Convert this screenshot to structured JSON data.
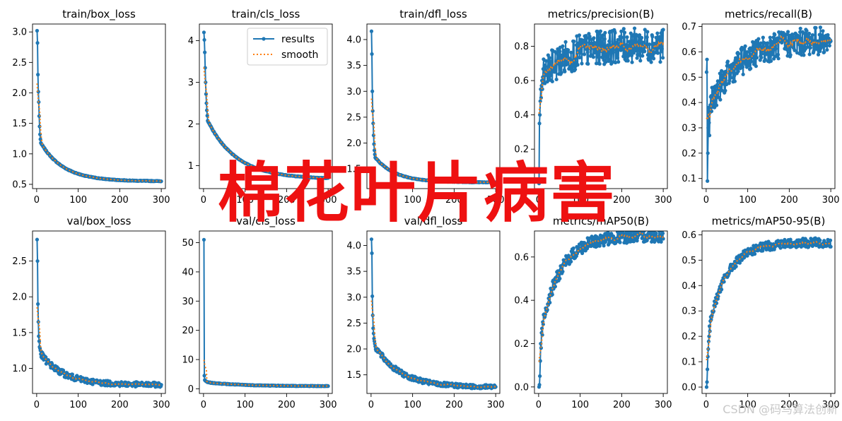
{
  "overlay_title": "棉花叶片病害",
  "watermark": "CSDN @码马算法创新",
  "colors": {
    "results": "#1f77b4",
    "smooth": "#ff7f0e",
    "overlay": "#ee1111"
  },
  "legend": {
    "labels": [
      "results",
      "smooth"
    ],
    "location": "upper right",
    "panel": 1
  },
  "chart_data": [
    {
      "type": "line",
      "title": "train/box_loss",
      "xlim": [
        -10,
        310
      ],
      "ylim": [
        0.43,
        3.13
      ],
      "xticks": [
        0,
        100,
        200,
        300
      ],
      "yticks": [
        0.5,
        1.0,
        1.5,
        2.0,
        2.5,
        3.0
      ],
      "xtick_labels": [
        "0",
        "100",
        "200",
        "300"
      ],
      "ytick_labels": [
        "0.5",
        "1.0",
        "1.5",
        "2.0",
        "2.5",
        "3.0"
      ],
      "shape": {
        "kind": "decay",
        "start": [
          3.02,
          2.82,
          2.3,
          2.02,
          1.85,
          1.62,
          1.45,
          1.32,
          1.24,
          1.18
        ],
        "tau": 55,
        "end": 0.55,
        "noise": 0.008
      },
      "series": [
        {
          "name": "results"
        },
        {
          "name": "smooth"
        }
      ]
    },
    {
      "type": "line",
      "title": "train/cls_loss",
      "xlim": [
        -10,
        310
      ],
      "ylim": [
        0.45,
        4.4
      ],
      "xticks": [
        0,
        100,
        200,
        300
      ],
      "yticks": [
        1,
        2,
        3,
        4
      ],
      "xtick_labels": [
        "0",
        "100",
        "200",
        "300"
      ],
      "ytick_labels": [
        "1",
        "2",
        "3",
        "4"
      ],
      "shape": {
        "kind": "decay",
        "start": [
          4.2,
          4.02,
          3.72,
          3.35,
          3.0,
          2.72,
          2.5,
          2.33,
          2.2,
          2.08
        ],
        "tau": 70,
        "end": 0.68,
        "noise": 0.01
      },
      "series": [
        {
          "name": "results"
        },
        {
          "name": "smooth"
        }
      ]
    },
    {
      "type": "line",
      "title": "train/dfl_loss",
      "xlim": [
        -10,
        310
      ],
      "ylim": [
        1.12,
        4.3
      ],
      "xticks": [
        0,
        100,
        200,
        300
      ],
      "yticks": [
        1.5,
        2.0,
        2.5,
        3.0,
        3.5,
        4.0
      ],
      "xtick_labels": [
        "0",
        "100",
        "200",
        "300"
      ],
      "ytick_labels": [
        "1.5",
        "2.0",
        "2.5",
        "3.0",
        "3.5",
        "4.0"
      ],
      "shape": {
        "kind": "decay",
        "start": [
          4.16,
          3.72,
          3.0,
          2.62,
          2.38,
          2.15,
          1.98,
          1.86,
          1.78,
          1.72
        ],
        "tau": 50,
        "end": 1.24,
        "noise": 0.008
      },
      "series": [
        {
          "name": "results"
        },
        {
          "name": "smooth"
        }
      ]
    },
    {
      "type": "line",
      "title": "metrics/precision(B)",
      "xlim": [
        -10,
        310
      ],
      "ylim": [
        -0.03,
        0.93
      ],
      "xticks": [
        0,
        100,
        200,
        300
      ],
      "yticks": [
        0.2,
        0.4,
        0.6,
        0.8
      ],
      "xtick_labels": [
        "0",
        "100",
        "200",
        "300"
      ],
      "ytick_labels": [
        "0.2",
        "0.4",
        "0.6",
        "0.8"
      ],
      "shape": {
        "kind": "rise",
        "start": [
          0.0,
          0.35,
          0.4,
          0.48,
          0.55,
          0.5,
          0.57,
          0.6,
          0.55,
          0.62
        ],
        "tau": 60,
        "end": 0.81,
        "noise": 0.1
      },
      "series": [
        {
          "name": "results"
        },
        {
          "name": "smooth"
        }
      ]
    },
    {
      "type": "line",
      "title": "metrics/recall(B)",
      "xlim": [
        -10,
        310
      ],
      "ylim": [
        0.06,
        0.71
      ],
      "xticks": [
        0,
        100,
        200,
        300
      ],
      "yticks": [
        0.1,
        0.2,
        0.3,
        0.4,
        0.5,
        0.6,
        0.7
      ],
      "xtick_labels": [
        "0",
        "100",
        "200",
        "300"
      ],
      "ytick_labels": [
        "0.1",
        "0.2",
        "0.3",
        "0.4",
        "0.5",
        "0.6",
        "0.7"
      ],
      "shape": {
        "kind": "rise",
        "start": [
          0.52,
          0.57,
          0.09,
          0.2,
          0.3,
          0.38,
          0.32,
          0.27,
          0.36,
          0.39
        ],
        "tau": 70,
        "end": 0.65,
        "noise": 0.055
      },
      "series": [
        {
          "name": "results"
        },
        {
          "name": "smooth"
        }
      ]
    },
    {
      "type": "line",
      "title": "val/box_loss",
      "xlim": [
        -10,
        310
      ],
      "ylim": [
        0.65,
        2.92
      ],
      "xticks": [
        0,
        100,
        200,
        300
      ],
      "yticks": [
        1.0,
        1.5,
        2.0,
        2.5
      ],
      "xtick_labels": [
        "0",
        "100",
        "200",
        "300"
      ],
      "ytick_labels": [
        "1.0",
        "1.5",
        "2.0",
        "2.5"
      ],
      "shape": {
        "kind": "decay",
        "start": [
          2.8,
          2.5,
          1.9,
          1.65,
          1.45,
          1.38,
          1.3,
          1.28,
          1.25,
          1.2
        ],
        "tau": 55,
        "end": 0.77,
        "noise": 0.05
      },
      "series": [
        {
          "name": "results"
        },
        {
          "name": "smooth"
        }
      ]
    },
    {
      "type": "line",
      "title": "val/cls_loss",
      "xlim": [
        -10,
        310
      ],
      "ylim": [
        -1.6,
        54
      ],
      "xticks": [
        0,
        100,
        200,
        300
      ],
      "yticks": [
        0,
        10,
        20,
        30,
        40,
        50
      ],
      "xtick_labels": [
        "0",
        "100",
        "200",
        "300"
      ],
      "ytick_labels": [
        "0",
        "10",
        "20",
        "30",
        "40",
        "50"
      ],
      "shape": {
        "kind": "decay",
        "start": [
          51.0,
          4.5,
          3.0,
          2.8,
          2.7,
          2.6,
          2.5,
          2.4,
          2.3,
          2.2
        ],
        "tau": 80,
        "end": 0.9,
        "noise": 0.15
      },
      "series": [
        {
          "name": "results"
        },
        {
          "name": "smooth"
        }
      ]
    },
    {
      "type": "line",
      "title": "val/dfl_loss",
      "xlim": [
        -10,
        310
      ],
      "ylim": [
        1.14,
        4.28
      ],
      "xticks": [
        0,
        100,
        200,
        300
      ],
      "yticks": [
        1.5,
        2.0,
        2.5,
        3.0,
        3.5,
        4.0
      ],
      "xtick_labels": [
        "0",
        "100",
        "200",
        "300"
      ],
      "ytick_labels": [
        "1.5",
        "2.0",
        "2.5",
        "3.0",
        "3.5",
        "4.0"
      ],
      "shape": {
        "kind": "decay",
        "start": [
          4.12,
          3.85,
          3.02,
          2.65,
          2.4,
          2.3,
          2.2,
          2.15,
          2.1,
          2.05
        ],
        "tau": 60,
        "end": 1.26,
        "noise": 0.06
      },
      "series": [
        {
          "name": "results"
        },
        {
          "name": "smooth"
        }
      ]
    },
    {
      "type": "line",
      "title": "metrics/mAP50(B)",
      "xlim": [
        -10,
        310
      ],
      "ylim": [
        -0.03,
        0.72
      ],
      "xticks": [
        0,
        100,
        200,
        300
      ],
      "yticks": [
        0.0,
        0.2,
        0.4,
        0.6
      ],
      "xtick_labels": [
        "0",
        "100",
        "200",
        "300"
      ],
      "ytick_labels": [
        "0.0",
        "0.2",
        "0.4",
        "0.6"
      ],
      "shape": {
        "kind": "rise",
        "start": [
          0.0,
          0.01,
          0.05,
          0.12,
          0.2,
          0.18,
          0.25,
          0.27,
          0.24,
          0.3
        ],
        "tau": 48,
        "end": 0.7,
        "noise": 0.03
      },
      "series": [
        {
          "name": "results"
        },
        {
          "name": "smooth"
        }
      ]
    },
    {
      "type": "line",
      "title": "metrics/mAP50-95(B)",
      "xlim": [
        -10,
        310
      ],
      "ylim": [
        -0.025,
        0.615
      ],
      "xticks": [
        0,
        100,
        200,
        300
      ],
      "yticks": [
        0.0,
        0.1,
        0.2,
        0.3,
        0.4,
        0.5,
        0.6
      ],
      "xtick_labels": [
        "0",
        "100",
        "200",
        "300"
      ],
      "ytick_labels": [
        "0.0",
        "0.1",
        "0.2",
        "0.3",
        "0.4",
        "0.5",
        "0.6"
      ],
      "shape": {
        "kind": "rise",
        "start": [
          0.0,
          0.02,
          0.07,
          0.12,
          0.15,
          0.18,
          0.2,
          0.24,
          0.22,
          0.26
        ],
        "tau": 45,
        "end": 0.57,
        "noise": 0.018
      },
      "series": [
        {
          "name": "results"
        },
        {
          "name": "smooth"
        }
      ]
    }
  ]
}
